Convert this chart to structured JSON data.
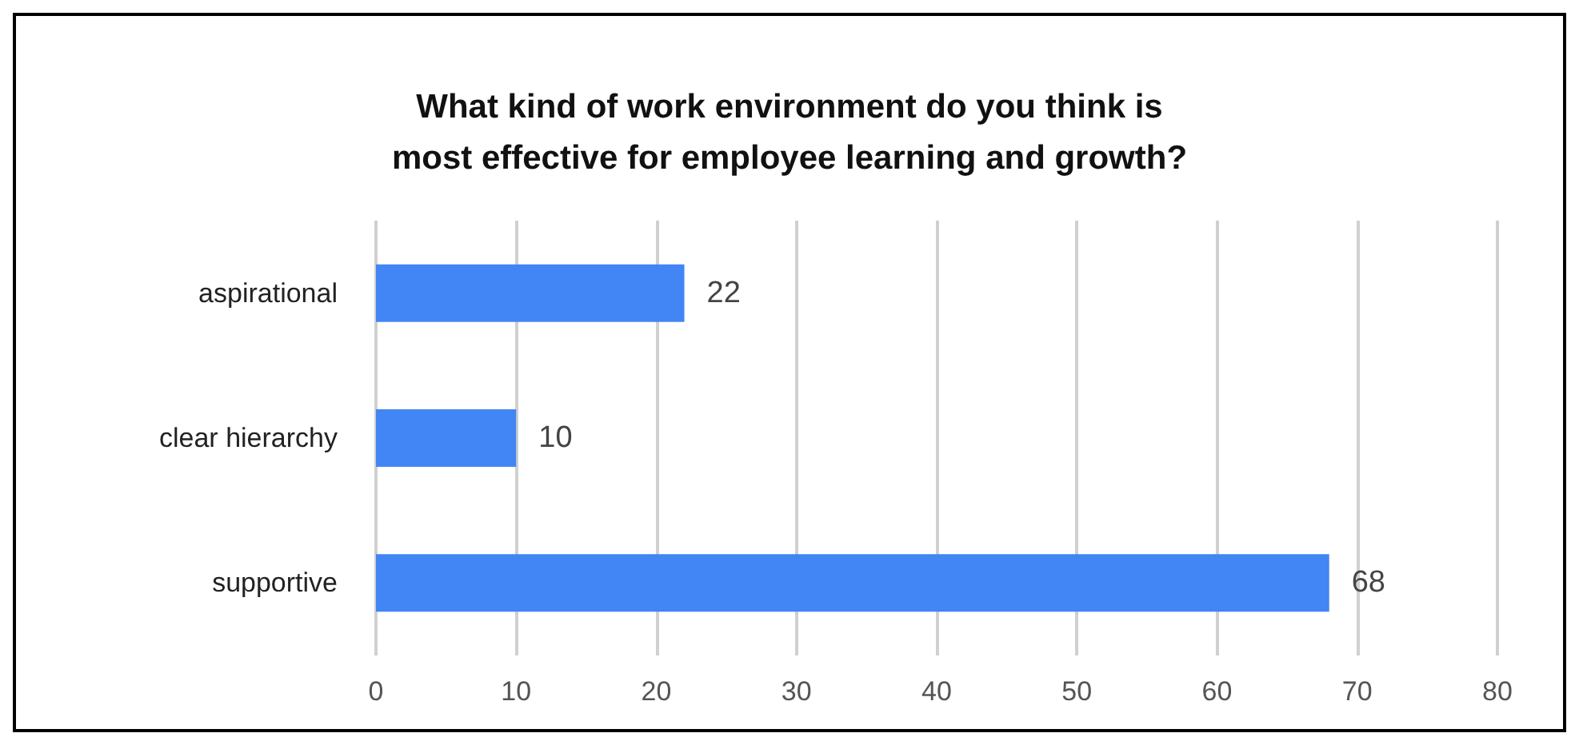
{
  "chart_data": {
    "type": "bar",
    "orientation": "horizontal",
    "title": "What kind of work environment do you think is\nmost effective for employee learning and growth?",
    "categories": [
      "aspirational",
      "clear hierarchy",
      "supportive"
    ],
    "values": [
      22,
      10,
      68
    ],
    "color": "#4285f4",
    "data_labels": true,
    "xlim": [
      0,
      80
    ],
    "xticks": [
      0,
      10,
      20,
      30,
      40,
      50,
      60,
      70,
      80
    ],
    "grid": "x"
  }
}
